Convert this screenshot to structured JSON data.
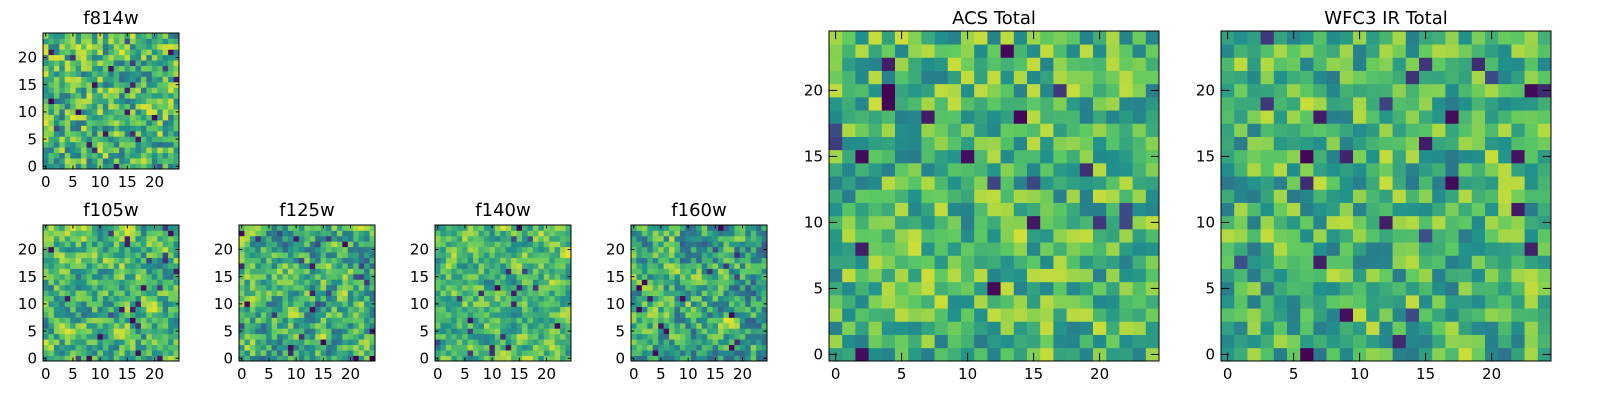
{
  "colormap": {
    "name": "viridis",
    "stops": [
      "#440154",
      "#3b528b",
      "#21918c",
      "#5ec962",
      "#fde725"
    ]
  },
  "chart_data": [
    {
      "type": "heatmap",
      "title": "f814w",
      "grid_size": 25,
      "xlim": [
        -0.5,
        24.5
      ],
      "ylim": [
        -0.5,
        24.5
      ],
      "xticks": [
        0,
        5,
        10,
        15,
        20
      ],
      "yticks": [
        0,
        5,
        10,
        15,
        20
      ],
      "seed": 11,
      "smoothness": 0.15,
      "mean": 0.66,
      "contrast": 0.3
    },
    {
      "type": "heatmap",
      "title": "f105w",
      "grid_size": 25,
      "xlim": [
        -0.5,
        24.5
      ],
      "ylim": [
        -0.5,
        24.5
      ],
      "xticks": [
        0,
        5,
        10,
        15,
        20
      ],
      "yticks": [
        0,
        5,
        10,
        15,
        20
      ],
      "seed": 23,
      "smoothness": 0.55,
      "mean": 0.66,
      "contrast": 0.3
    },
    {
      "type": "heatmap",
      "title": "f125w",
      "grid_size": 25,
      "xlim": [
        -0.5,
        24.5
      ],
      "ylim": [
        -0.5,
        24.5
      ],
      "xticks": [
        0,
        5,
        10,
        15,
        20
      ],
      "yticks": [
        0,
        5,
        10,
        15,
        20
      ],
      "seed": 37,
      "smoothness": 0.5,
      "mean": 0.62,
      "contrast": 0.32
    },
    {
      "type": "heatmap",
      "title": "f140w",
      "grid_size": 25,
      "xlim": [
        -0.5,
        24.5
      ],
      "ylim": [
        -0.5,
        24.5
      ],
      "xticks": [
        0,
        5,
        10,
        15,
        20
      ],
      "yticks": [
        0,
        5,
        10,
        15,
        20
      ],
      "seed": 41,
      "smoothness": 0.55,
      "mean": 0.68,
      "contrast": 0.3
    },
    {
      "type": "heatmap",
      "title": "f160w",
      "grid_size": 25,
      "xlim": [
        -0.5,
        24.5
      ],
      "ylim": [
        -0.5,
        24.5
      ],
      "xticks": [
        0,
        5,
        10,
        15,
        20
      ],
      "yticks": [
        0,
        5,
        10,
        15,
        20
      ],
      "seed": 53,
      "smoothness": 0.45,
      "mean": 0.62,
      "contrast": 0.34
    },
    {
      "type": "heatmap",
      "title": "ACS Total",
      "grid_size": 25,
      "xlim": [
        -0.5,
        24.5
      ],
      "ylim": [
        -0.5,
        24.5
      ],
      "xticks": [
        0,
        5,
        10,
        15,
        20
      ],
      "yticks": [
        0,
        5,
        10,
        15,
        20
      ],
      "seed": 67,
      "smoothness": 0.15,
      "mean": 0.67,
      "contrast": 0.26
    },
    {
      "type": "heatmap",
      "title": "WFC3 IR Total",
      "grid_size": 25,
      "xlim": [
        -0.5,
        24.5
      ],
      "ylim": [
        -0.5,
        24.5
      ],
      "xticks": [
        0,
        5,
        10,
        15,
        20
      ],
      "yticks": [
        0,
        5,
        10,
        15,
        20
      ],
      "seed": 79,
      "smoothness": 0.15,
      "mean": 0.65,
      "contrast": 0.27
    }
  ]
}
